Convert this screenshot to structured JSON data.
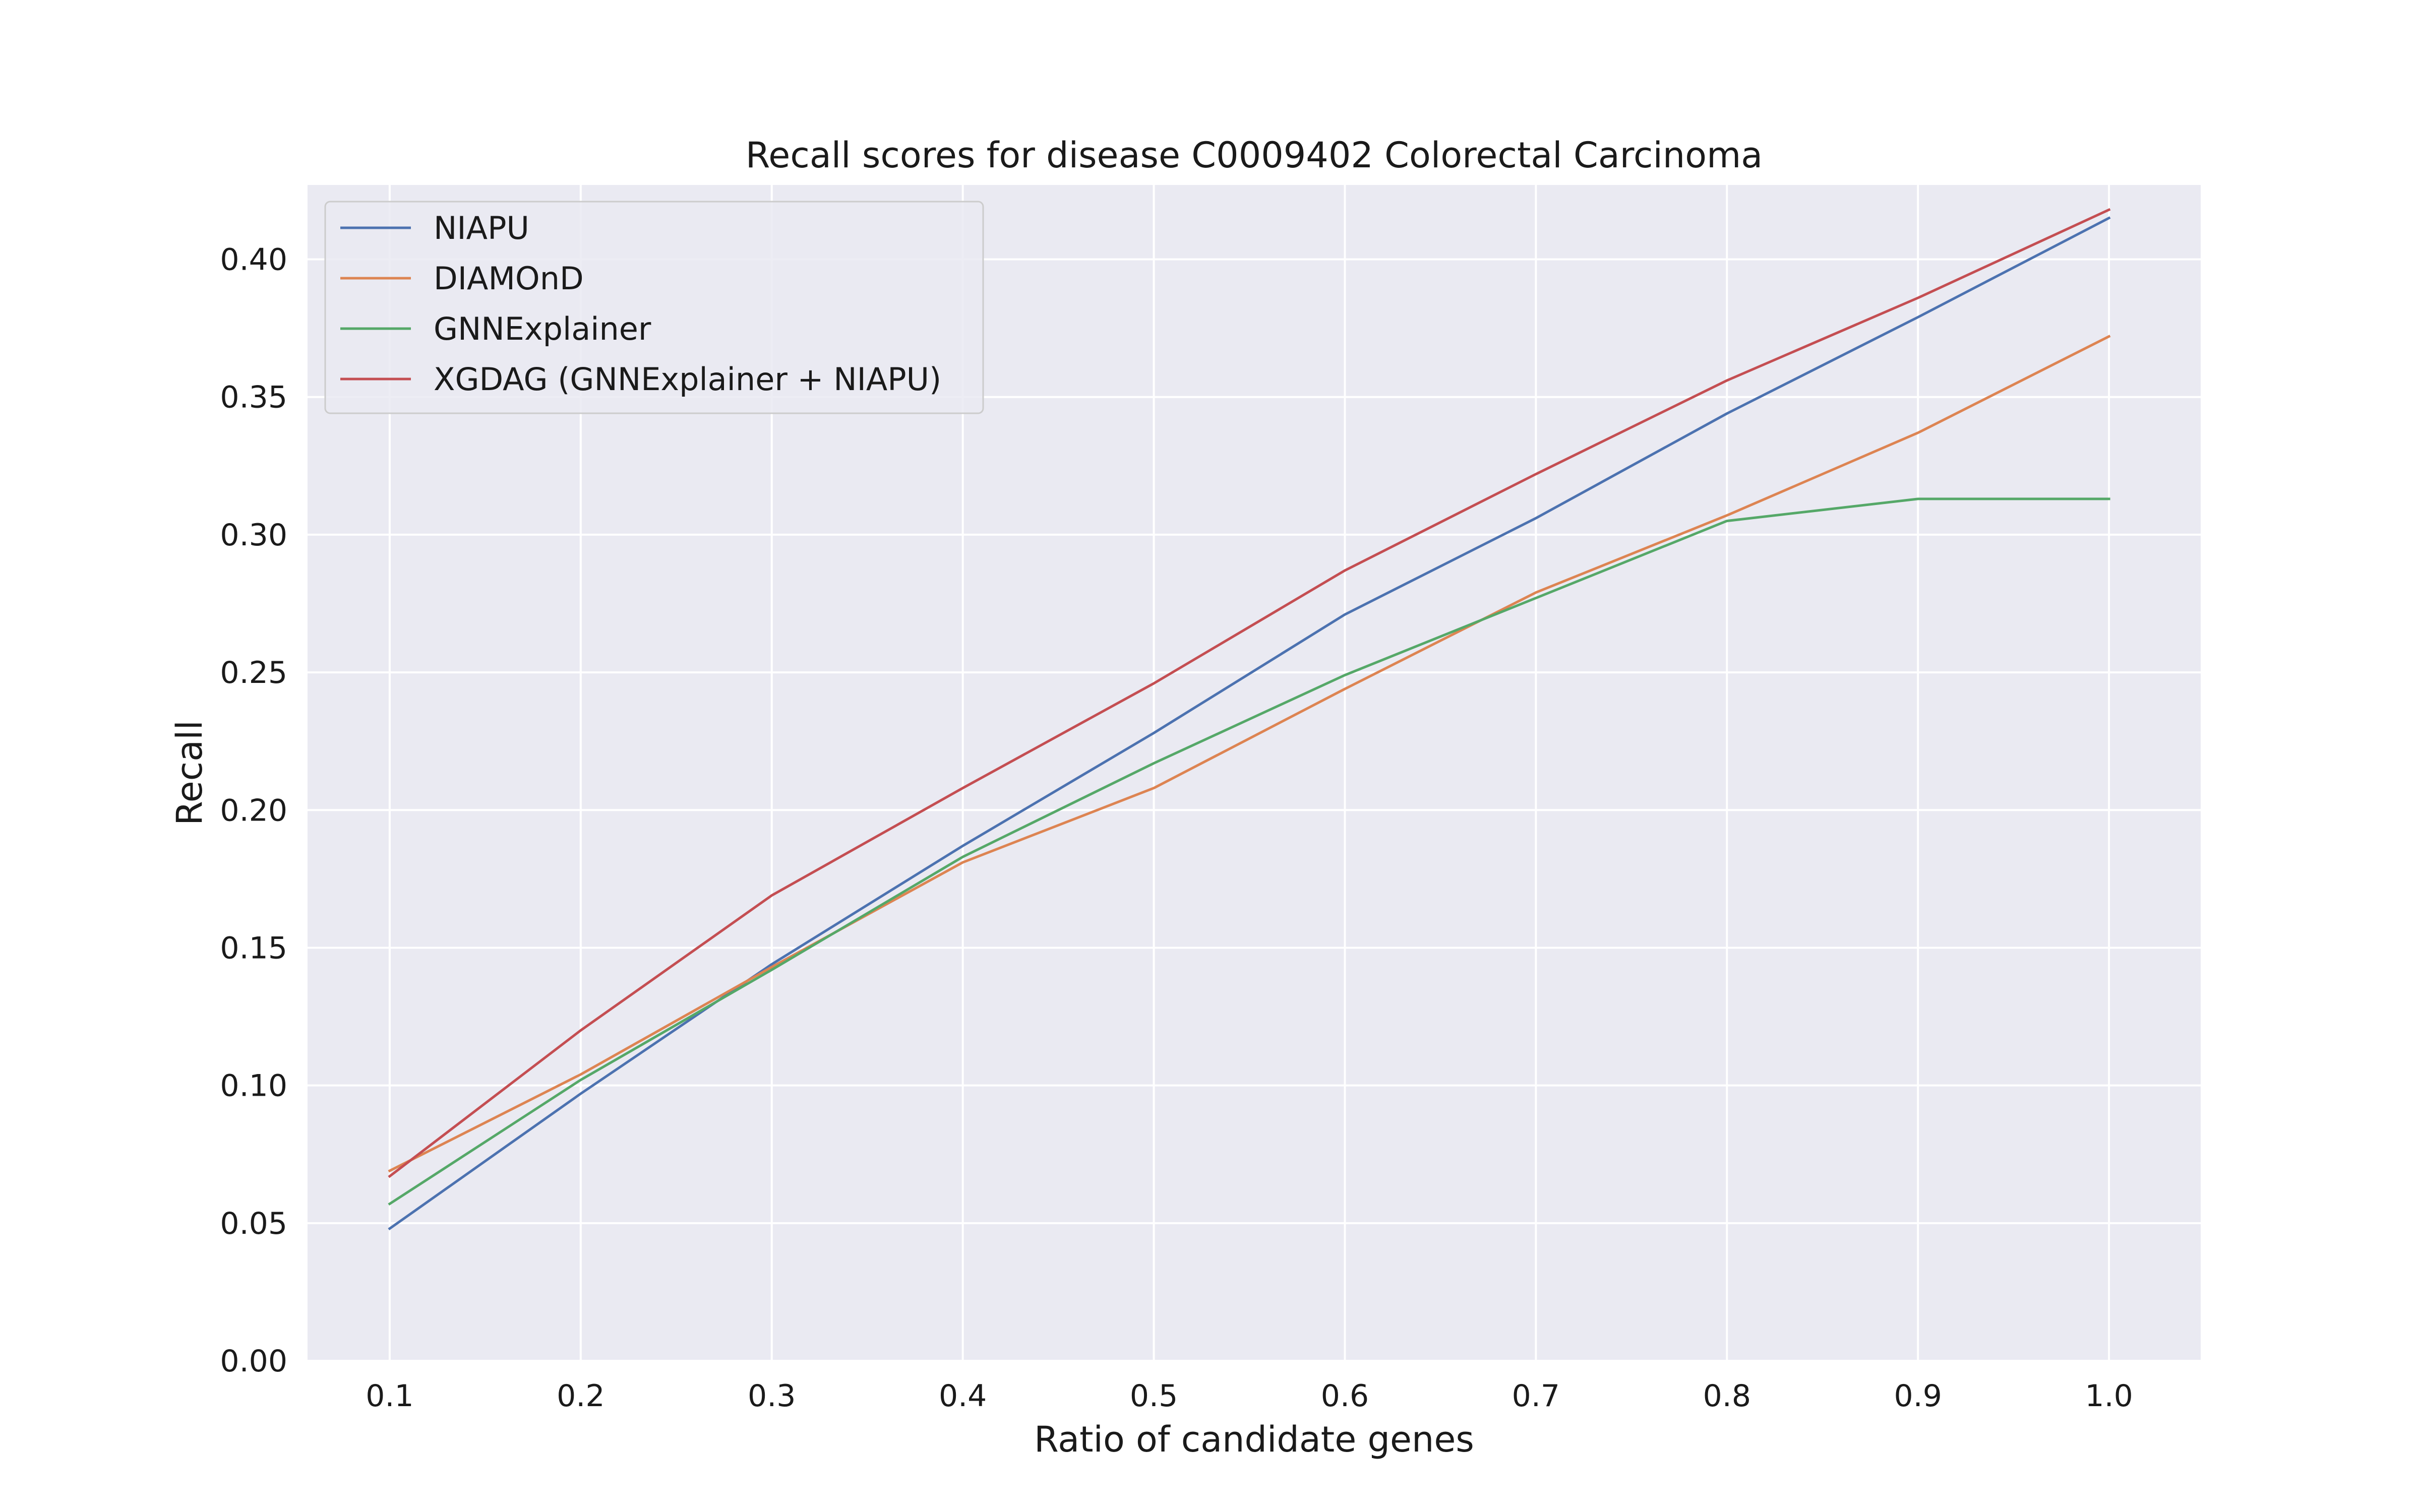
{
  "chart_data": {
    "type": "line",
    "title": "Recall scores for disease C0009402 Colorectal Carcinoma",
    "xlabel": "Ratio of candidate genes",
    "ylabel": "Recall",
    "x": [
      0.1,
      0.2,
      0.3,
      0.4,
      0.5,
      0.6,
      0.7,
      0.8,
      0.9,
      1.0
    ],
    "xticks": [
      "0.1",
      "0.2",
      "0.3",
      "0.4",
      "0.5",
      "0.6",
      "0.7",
      "0.8",
      "0.9",
      "1.0"
    ],
    "yticks": [
      "0.00",
      "0.05",
      "0.10",
      "0.15",
      "0.20",
      "0.25",
      "0.30",
      "0.35",
      "0.40"
    ],
    "xlim": [
      0.057,
      1.048
    ],
    "ylim": [
      0.0,
      0.427
    ],
    "grid": true,
    "legend_position": "top-left",
    "background_color": "#EAEAF2",
    "grid_color": "#FFFFFF",
    "series": [
      {
        "name": "NIAPU",
        "color": "#4C72B0",
        "values": [
          0.048,
          0.097,
          0.144,
          0.187,
          0.228,
          0.271,
          0.306,
          0.344,
          0.379,
          0.415
        ]
      },
      {
        "name": "DIAMOnD",
        "color": "#DD8452",
        "values": [
          0.069,
          0.104,
          0.143,
          0.181,
          0.208,
          0.244,
          0.279,
          0.307,
          0.337,
          0.372
        ]
      },
      {
        "name": "GNNExplainer",
        "color": "#55A868",
        "values": [
          0.057,
          0.102,
          0.142,
          0.183,
          0.217,
          0.249,
          0.277,
          0.305,
          0.313,
          0.313
        ]
      },
      {
        "name": "XGDAG (GNNExplainer + NIAPU)",
        "color": "#C44E52",
        "values": [
          0.067,
          0.12,
          0.169,
          0.208,
          0.246,
          0.287,
          0.322,
          0.356,
          0.386,
          0.418
        ]
      }
    ]
  }
}
